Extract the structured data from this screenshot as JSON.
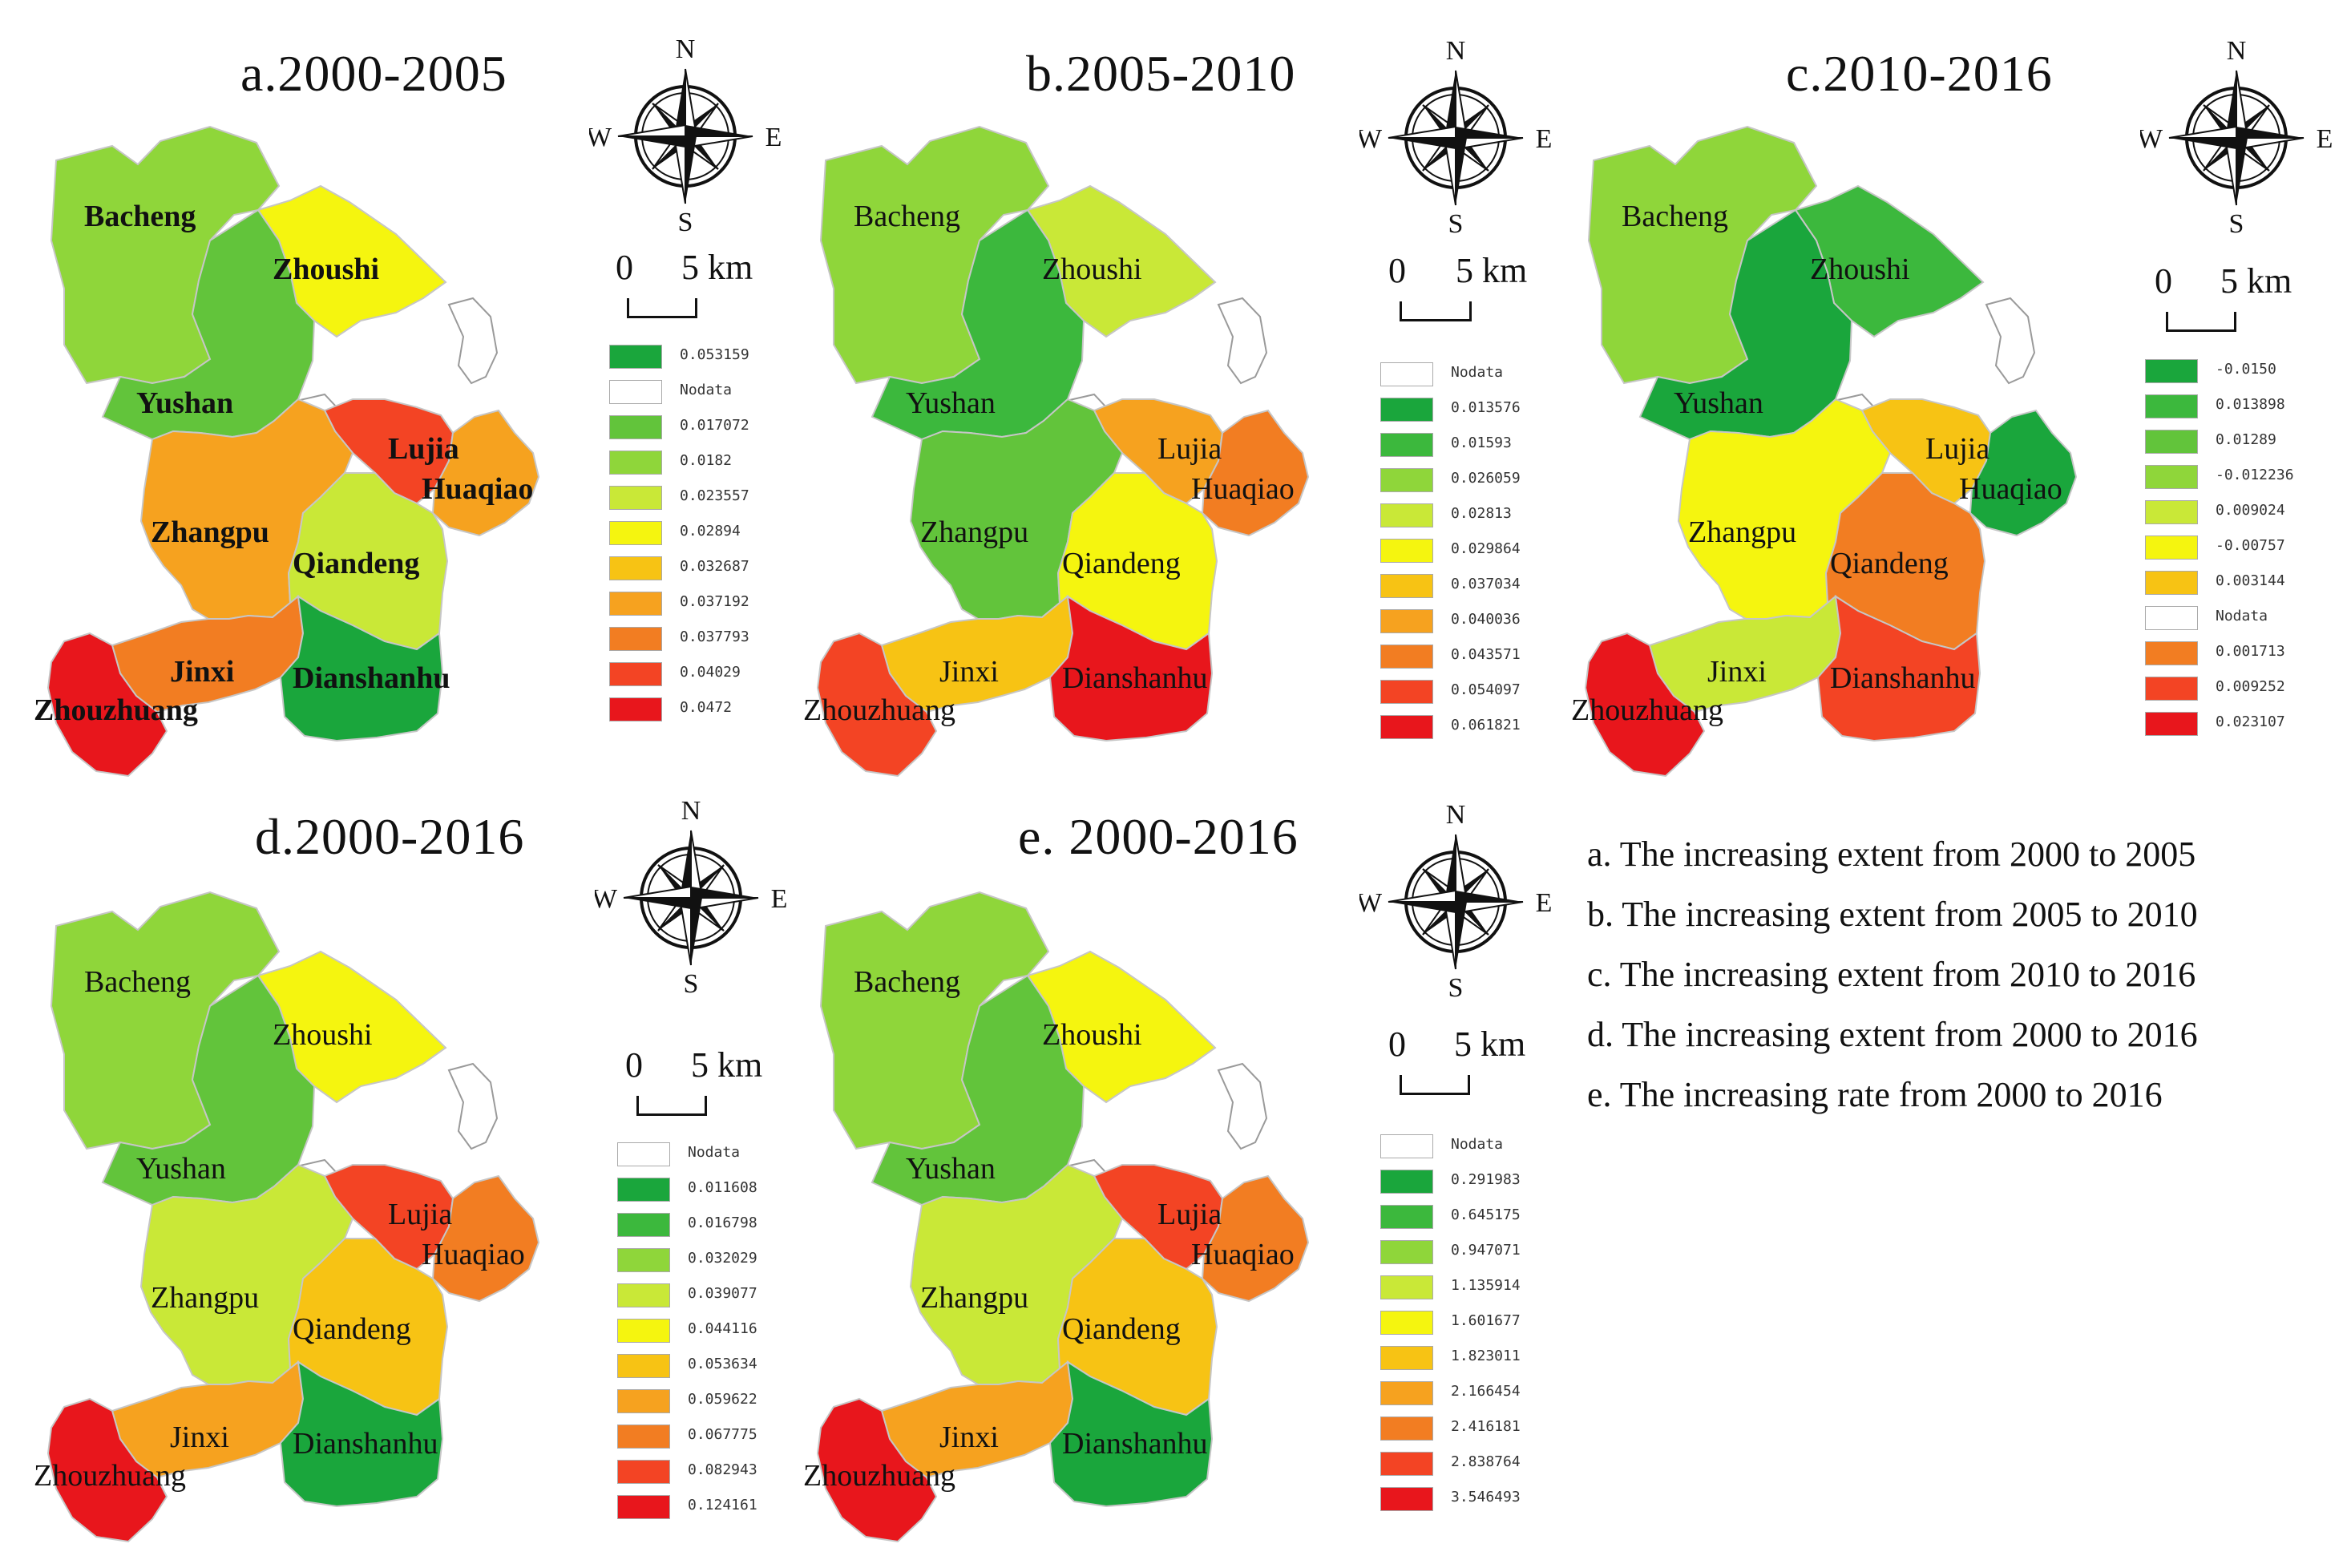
{
  "colors": {
    "red": "#e8161c",
    "red_orange": "#f34424",
    "orange": "#f27d22",
    "light_orange": "#f6a21f",
    "amber": "#f7c314",
    "yellow": "#f5f50f",
    "yellow_green": "#c9e837",
    "light_green": "#8fd63a",
    "green": "#62c43b",
    "mid_green": "#3cb83d",
    "dark_green": "#1aa63c",
    "nodata": "#ffffff"
  },
  "panels": [
    {
      "id": "a",
      "title": "a.2000-2005",
      "scale": {
        "zero": "0",
        "five": "5 km"
      },
      "compass": {
        "n": "N",
        "s": "S",
        "e": "E",
        "w": "W"
      },
      "labels": {
        "bacheng": "Bacheng",
        "zhoushi": "Zhoushi",
        "yushan": "Yushan",
        "lujia": "Lujia",
        "huaqiao": "Huaqiao",
        "zhangpu": "Zhangpu",
        "qiandeng": "Qiandeng",
        "jinxi": "Jinxi",
        "dianshanhu": "Dianshanhu",
        "zhouzhuang": "Zhouzhuang"
      },
      "fills": {
        "bacheng": "light_green",
        "zhoushi": "yellow",
        "yushan": "green",
        "lujia": "red_orange",
        "huaqiao": "light_orange",
        "zhangpu": "light_orange",
        "qiandeng": "yellow_green",
        "jinxi": "orange",
        "dianshanhu": "dark_green",
        "zhouzhuang": "red"
      },
      "legend": [
        {
          "color": "dark_green",
          "label": "0.053159"
        },
        {
          "color": "nodata",
          "label": "Nodata"
        },
        {
          "color": "green",
          "label": "0.017072"
        },
        {
          "color": "light_green",
          "label": "0.0182"
        },
        {
          "color": "yellow_green",
          "label": "0.023557"
        },
        {
          "color": "yellow",
          "label": "0.02894"
        },
        {
          "color": "amber",
          "label": "0.032687"
        },
        {
          "color": "light_orange",
          "label": "0.037192"
        },
        {
          "color": "orange",
          "label": "0.037793"
        },
        {
          "color": "red_orange",
          "label": "0.04029"
        },
        {
          "color": "red",
          "label": "0.0472"
        }
      ]
    },
    {
      "id": "b",
      "title": "b.2005-2010",
      "scale": {
        "zero": "0",
        "five": "5 km"
      },
      "compass": {
        "n": "N",
        "s": "S",
        "e": "E",
        "w": "W"
      },
      "labels": {
        "bacheng": "Bacheng",
        "zhoushi": "Zhoushi",
        "yushan": "Yushan",
        "lujia": "Lujia",
        "huaqiao": "Huaqiao",
        "zhangpu": "Zhangpu",
        "qiandeng": "Qiandeng",
        "jinxi": "Jinxi",
        "dianshanhu": "Dianshanhu",
        "zhouzhuang": "Zhouzhuang"
      },
      "fills": {
        "bacheng": "light_green",
        "zhoushi": "yellow_green",
        "yushan": "mid_green",
        "lujia": "light_orange",
        "huaqiao": "orange",
        "zhangpu": "green",
        "qiandeng": "yellow",
        "jinxi": "amber",
        "dianshanhu": "red",
        "zhouzhuang": "red_orange"
      },
      "legend": [
        {
          "color": "nodata",
          "label": "Nodata"
        },
        {
          "color": "dark_green",
          "label": "0.013576"
        },
        {
          "color": "mid_green",
          "label": "0.01593"
        },
        {
          "color": "light_green",
          "label": "0.026059"
        },
        {
          "color": "yellow_green",
          "label": "0.02813"
        },
        {
          "color": "yellow",
          "label": "0.029864"
        },
        {
          "color": "amber",
          "label": "0.037034"
        },
        {
          "color": "light_orange",
          "label": "0.040036"
        },
        {
          "color": "orange",
          "label": "0.043571"
        },
        {
          "color": "red_orange",
          "label": "0.054097"
        },
        {
          "color": "red",
          "label": "0.061821"
        }
      ]
    },
    {
      "id": "c",
      "title": "c.2010-2016",
      "scale": {
        "zero": "0",
        "five": "5 km"
      },
      "compass": {
        "n": "N",
        "s": "S",
        "e": "E",
        "w": "W"
      },
      "labels": {
        "bacheng": "Bacheng",
        "zhoushi": "Zhoushi",
        "yushan": "Yushan",
        "lujia": "Lujia",
        "huaqiao": "Huaqiao",
        "zhangpu": "Zhangpu",
        "qiandeng": "Qiandeng",
        "jinxi": "Jinxi",
        "dianshanhu": "Dianshanhu",
        "zhouzhuang": "Zhouzhuang"
      },
      "fills": {
        "bacheng": "light_green",
        "zhoushi": "mid_green",
        "yushan": "dark_green",
        "lujia": "amber",
        "huaqiao": "dark_green",
        "zhangpu": "yellow",
        "qiandeng": "orange",
        "jinxi": "yellow_green",
        "dianshanhu": "red_orange",
        "zhouzhuang": "red"
      },
      "legend": [
        {
          "color": "dark_green",
          "label": "-0.0150"
        },
        {
          "color": "mid_green",
          "label": "0.013898"
        },
        {
          "color": "green",
          "label": "0.01289"
        },
        {
          "color": "light_green",
          "label": "-0.012236"
        },
        {
          "color": "yellow_green",
          "label": "0.009024"
        },
        {
          "color": "yellow",
          "label": "-0.00757"
        },
        {
          "color": "amber",
          "label": "0.003144"
        },
        {
          "color": "nodata",
          "label": "Nodata"
        },
        {
          "color": "orange",
          "label": "0.001713"
        },
        {
          "color": "red_orange",
          "label": "0.009252"
        },
        {
          "color": "red",
          "label": "0.023107"
        }
      ]
    },
    {
      "id": "d",
      "title": "d.2000-2016",
      "scale": {
        "zero": "0",
        "five": "5 km"
      },
      "compass": {
        "n": "N",
        "s": "S",
        "e": "E",
        "w": "W"
      },
      "labels": {
        "bacheng": "Bacheng",
        "zhoushi": "Zhoushi",
        "yushan": "Yushan",
        "lujia": "Lujia",
        "huaqiao": "Huaqiao",
        "zhangpu": "Zhangpu",
        "qiandeng": "Qiandeng",
        "jinxi": "Jinxi",
        "dianshanhu": "Dianshanhu",
        "zhouzhuang": "Zhouzhuang"
      },
      "fills": {
        "bacheng": "light_green",
        "zhoushi": "yellow",
        "yushan": "green",
        "lujia": "red_orange",
        "huaqiao": "orange",
        "zhangpu": "yellow_green",
        "qiandeng": "amber",
        "jinxi": "light_orange",
        "dianshanhu": "dark_green",
        "zhouzhuang": "red"
      },
      "legend": [
        {
          "color": "nodata",
          "label": "Nodata"
        },
        {
          "color": "dark_green",
          "label": "0.011608"
        },
        {
          "color": "mid_green",
          "label": "0.016798"
        },
        {
          "color": "light_green",
          "label": "0.032029"
        },
        {
          "color": "yellow_green",
          "label": "0.039077"
        },
        {
          "color": "yellow",
          "label": "0.044116"
        },
        {
          "color": "amber",
          "label": "0.053634"
        },
        {
          "color": "light_orange",
          "label": "0.059622"
        },
        {
          "color": "orange",
          "label": "0.067775"
        },
        {
          "color": "red_orange",
          "label": "0.082943"
        },
        {
          "color": "red",
          "label": "0.124161"
        }
      ]
    },
    {
      "id": "e",
      "title": "e. 2000-2016",
      "scale": {
        "zero": "0",
        "five": "5 km"
      },
      "compass": {
        "n": "N",
        "s": "S",
        "e": "E",
        "w": "W"
      },
      "labels": {
        "bacheng": "Bacheng",
        "zhoushi": "Zhoushi",
        "yushan": "Yushan",
        "lujia": "Lujia",
        "huaqiao": "Huaqiao",
        "zhangpu": "Zhangpu",
        "qiandeng": "Qiandeng",
        "jinxi": "Jinxi",
        "dianshanhu": "Dianshanhu",
        "zhouzhuang": "Zhouzhuang"
      },
      "fills": {
        "bacheng": "light_green",
        "zhoushi": "yellow",
        "yushan": "green",
        "lujia": "red_orange",
        "huaqiao": "orange",
        "zhangpu": "yellow_green",
        "qiandeng": "amber",
        "jinxi": "light_orange",
        "dianshanhu": "dark_green",
        "zhouzhuang": "red"
      },
      "legend": [
        {
          "color": "nodata",
          "label": "Nodata"
        },
        {
          "color": "dark_green",
          "label": "0.291983"
        },
        {
          "color": "mid_green",
          "label": "0.645175"
        },
        {
          "color": "light_green",
          "label": "0.947071"
        },
        {
          "color": "yellow_green",
          "label": "1.135914"
        },
        {
          "color": "yellow",
          "label": "1.601677"
        },
        {
          "color": "amber",
          "label": "1.823011"
        },
        {
          "color": "light_orange",
          "label": "2.166454"
        },
        {
          "color": "orange",
          "label": "2.416181"
        },
        {
          "color": "red_orange",
          "label": "2.838764"
        },
        {
          "color": "red",
          "label": "3.546493"
        }
      ]
    }
  ],
  "notes": [
    "a. The increasing extent from 2000 to 2005",
    "b. The  increasing extent from 2005 to 2010",
    "c. The  increasing extent from 2010 to 2016",
    "d. The  increasing extent from 2000 to 2016",
    "e. The  increasing rate from 2000 to 2016"
  ]
}
